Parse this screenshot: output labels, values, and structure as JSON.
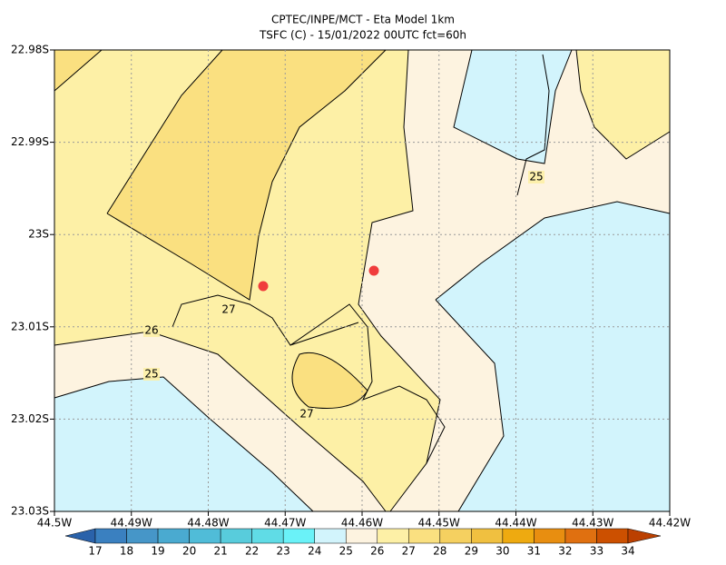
{
  "header": {
    "title": "CPTEC/INPE/MCT -  Eta Model 1km",
    "subtitle": "TSFC (C) - 15/01/2022 00UTC fct=60h"
  },
  "map": {
    "xticks": [
      "44.5W",
      "44.49W",
      "44.48W",
      "44.47W",
      "44.46W",
      "44.45W",
      "44.44W",
      "44.43W",
      "44.42W"
    ],
    "yticks": [
      "22.98S",
      "22.99S",
      "23S",
      "23.01S",
      "23.02S",
      "23.03S"
    ],
    "contour_labels": [
      "27",
      "26",
      "25",
      "27",
      "25"
    ]
  },
  "colorbar": {
    "labels": [
      17,
      18,
      19,
      20,
      21,
      22,
      23,
      24,
      25,
      26,
      27,
      28,
      29,
      30,
      31,
      32,
      33,
      34
    ],
    "colors": [
      "#2a62aa",
      "#3a80c0",
      "#4696c8",
      "#4aaad0",
      "#50bcd8",
      "#58ccdc",
      "#60dce6",
      "#6af2f8",
      "#d2f4fc",
      "#fdf3e0",
      "#fdf0a6",
      "#fae080",
      "#f5d060",
      "#f0c040",
      "#eeaa10",
      "#e88e10",
      "#e07010",
      "#cc5000",
      "#bb4000"
    ]
  }
}
